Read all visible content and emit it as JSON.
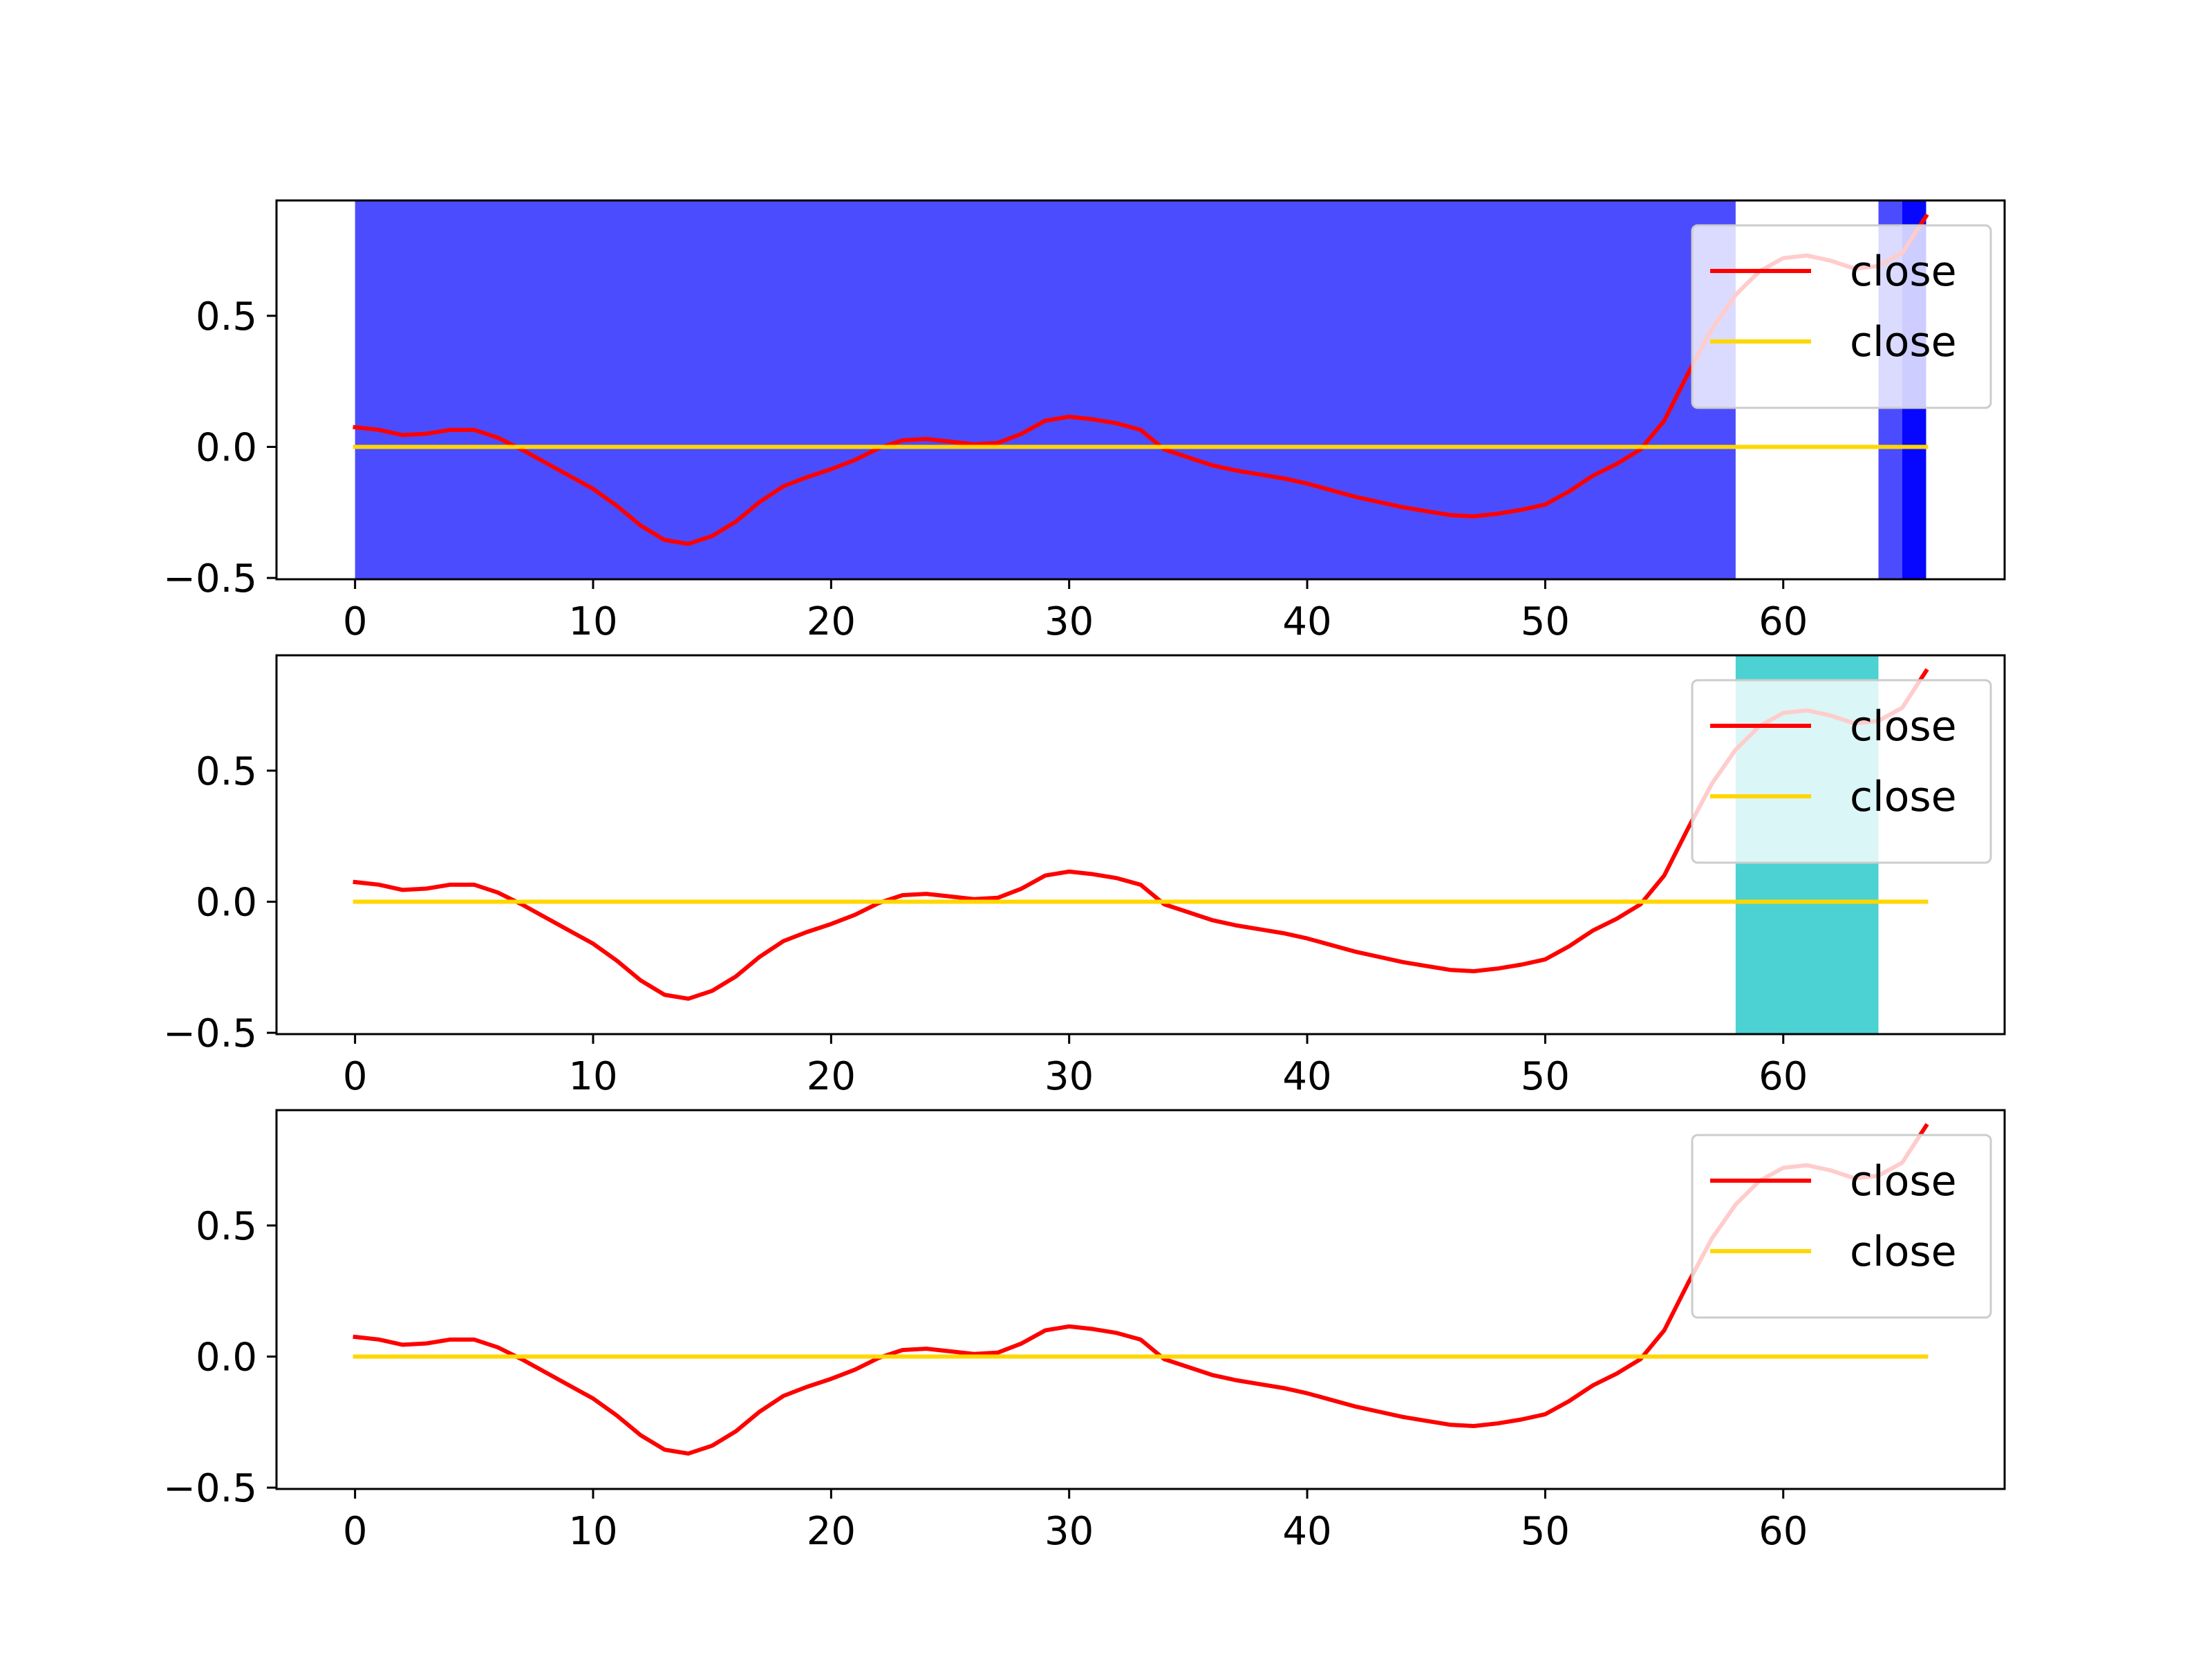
{
  "chart_data": [
    {
      "type": "line",
      "xlim": [
        -3.3,
        69.3
      ],
      "ylim": [
        -0.505,
        0.94
      ],
      "xticks": [
        0,
        10,
        20,
        30,
        40,
        50,
        60
      ],
      "xtick_labels": [
        "0",
        "10",
        "20",
        "30",
        "40",
        "50",
        "60"
      ],
      "yticks": [
        -0.5,
        0.0,
        0.5
      ],
      "ytick_labels": [
        "−0.5",
        "0.0",
        "0.5"
      ],
      "legend_position": "upper right",
      "grid": false,
      "series": [
        {
          "name": "close",
          "color": "#ff0000",
          "x": [
            0,
            1,
            2,
            3,
            4,
            5,
            6,
            7,
            8,
            9,
            10,
            11,
            12,
            13,
            14,
            15,
            16,
            17,
            18,
            19,
            20,
            21,
            22,
            23,
            24,
            25,
            26,
            27,
            28,
            29,
            30,
            31,
            32,
            33,
            34,
            35,
            36,
            37,
            38,
            39,
            40,
            41,
            42,
            43,
            44,
            45,
            46,
            47,
            48,
            49,
            50,
            51,
            52,
            53,
            54,
            55,
            56,
            57,
            58,
            59,
            60,
            61,
            62,
            63,
            64,
            65,
            66
          ],
          "values": [
            0.075,
            0.065,
            0.045,
            0.05,
            0.065,
            0.065,
            0.035,
            -0.01,
            -0.06,
            -0.11,
            -0.16,
            -0.225,
            -0.3,
            -0.355,
            -0.37,
            -0.34,
            -0.285,
            -0.21,
            -0.15,
            -0.115,
            -0.085,
            -0.05,
            -0.005,
            0.025,
            0.03,
            0.02,
            0.01,
            0.015,
            0.05,
            0.1,
            0.115,
            0.105,
            0.09,
            0.065,
            -0.01,
            -0.04,
            -0.07,
            -0.09,
            -0.105,
            -0.12,
            -0.14,
            -0.165,
            -0.19,
            -0.21,
            -0.23,
            -0.245,
            -0.26,
            -0.265,
            -0.255,
            -0.24,
            -0.22,
            -0.17,
            -0.11,
            -0.065,
            -0.01,
            0.1,
            0.28,
            0.45,
            0.58,
            0.67,
            0.72,
            0.73,
            0.71,
            0.68,
            0.69,
            0.74,
            0.88
          ]
        },
        {
          "name": "close",
          "color": "#ffd700",
          "x": [
            0,
            66
          ],
          "values": [
            0,
            0
          ]
        }
      ],
      "shaded_spans": [
        {
          "x": [
            0,
            58
          ],
          "color": "#0000ff",
          "opacity": 0.7
        },
        {
          "x": [
            64,
            66
          ],
          "color": "#0000ff",
          "opacity": 0.7
        },
        {
          "x": [
            65,
            66
          ],
          "color": "#0000ff",
          "opacity": 0.9
        }
      ]
    },
    {
      "type": "line",
      "xlim": [
        -3.3,
        69.3
      ],
      "ylim": [
        -0.505,
        0.94
      ],
      "xticks": [
        0,
        10,
        20,
        30,
        40,
        50,
        60
      ],
      "xtick_labels": [
        "0",
        "10",
        "20",
        "30",
        "40",
        "50",
        "60"
      ],
      "yticks": [
        -0.5,
        0.0,
        0.5
      ],
      "ytick_labels": [
        "−0.5",
        "0.0",
        "0.5"
      ],
      "legend_position": "upper right",
      "grid": false,
      "series": [
        {
          "name": "close",
          "color": "#ff0000",
          "x": [
            0,
            1,
            2,
            3,
            4,
            5,
            6,
            7,
            8,
            9,
            10,
            11,
            12,
            13,
            14,
            15,
            16,
            17,
            18,
            19,
            20,
            21,
            22,
            23,
            24,
            25,
            26,
            27,
            28,
            29,
            30,
            31,
            32,
            33,
            34,
            35,
            36,
            37,
            38,
            39,
            40,
            41,
            42,
            43,
            44,
            45,
            46,
            47,
            48,
            49,
            50,
            51,
            52,
            53,
            54,
            55,
            56,
            57,
            58,
            59,
            60,
            61,
            62,
            63,
            64,
            65,
            66
          ],
          "values": [
            0.075,
            0.065,
            0.045,
            0.05,
            0.065,
            0.065,
            0.035,
            -0.01,
            -0.06,
            -0.11,
            -0.16,
            -0.225,
            -0.3,
            -0.355,
            -0.37,
            -0.34,
            -0.285,
            -0.21,
            -0.15,
            -0.115,
            -0.085,
            -0.05,
            -0.005,
            0.025,
            0.03,
            0.02,
            0.01,
            0.015,
            0.05,
            0.1,
            0.115,
            0.105,
            0.09,
            0.065,
            -0.01,
            -0.04,
            -0.07,
            -0.09,
            -0.105,
            -0.12,
            -0.14,
            -0.165,
            -0.19,
            -0.21,
            -0.23,
            -0.245,
            -0.26,
            -0.265,
            -0.255,
            -0.24,
            -0.22,
            -0.17,
            -0.11,
            -0.065,
            -0.01,
            0.1,
            0.28,
            0.45,
            0.58,
            0.67,
            0.72,
            0.73,
            0.71,
            0.68,
            0.69,
            0.74,
            0.88
          ]
        },
        {
          "name": "close",
          "color": "#ffd700",
          "x": [
            0,
            66
          ],
          "values": [
            0,
            0
          ]
        }
      ],
      "shaded_spans": [
        {
          "x": [
            58,
            64
          ],
          "color": "#00bfbf",
          "opacity": 0.7
        }
      ]
    },
    {
      "type": "line",
      "xlim": [
        -3.3,
        69.3
      ],
      "ylim": [
        -0.505,
        0.94
      ],
      "xticks": [
        0,
        10,
        20,
        30,
        40,
        50,
        60
      ],
      "xtick_labels": [
        "0",
        "10",
        "20",
        "30",
        "40",
        "50",
        "60"
      ],
      "yticks": [
        -0.5,
        0.0,
        0.5
      ],
      "ytick_labels": [
        "−0.5",
        "0.0",
        "0.5"
      ],
      "legend_position": "upper right",
      "grid": false,
      "series": [
        {
          "name": "close",
          "color": "#ff0000",
          "x": [
            0,
            1,
            2,
            3,
            4,
            5,
            6,
            7,
            8,
            9,
            10,
            11,
            12,
            13,
            14,
            15,
            16,
            17,
            18,
            19,
            20,
            21,
            22,
            23,
            24,
            25,
            26,
            27,
            28,
            29,
            30,
            31,
            32,
            33,
            34,
            35,
            36,
            37,
            38,
            39,
            40,
            41,
            42,
            43,
            44,
            45,
            46,
            47,
            48,
            49,
            50,
            51,
            52,
            53,
            54,
            55,
            56,
            57,
            58,
            59,
            60,
            61,
            62,
            63,
            64,
            65,
            66
          ],
          "values": [
            0.075,
            0.065,
            0.045,
            0.05,
            0.065,
            0.065,
            0.035,
            -0.01,
            -0.06,
            -0.11,
            -0.16,
            -0.225,
            -0.3,
            -0.355,
            -0.37,
            -0.34,
            -0.285,
            -0.21,
            -0.15,
            -0.115,
            -0.085,
            -0.05,
            -0.005,
            0.025,
            0.03,
            0.02,
            0.01,
            0.015,
            0.05,
            0.1,
            0.115,
            0.105,
            0.09,
            0.065,
            -0.01,
            -0.04,
            -0.07,
            -0.09,
            -0.105,
            -0.12,
            -0.14,
            -0.165,
            -0.19,
            -0.21,
            -0.23,
            -0.245,
            -0.26,
            -0.265,
            -0.255,
            -0.24,
            -0.22,
            -0.17,
            -0.11,
            -0.065,
            -0.01,
            0.1,
            0.28,
            0.45,
            0.58,
            0.67,
            0.72,
            0.73,
            0.71,
            0.68,
            0.69,
            0.74,
            0.88
          ]
        },
        {
          "name": "close",
          "color": "#ffd700",
          "x": [
            0,
            66
          ],
          "values": [
            0,
            0
          ]
        }
      ],
      "shaded_spans": []
    }
  ]
}
